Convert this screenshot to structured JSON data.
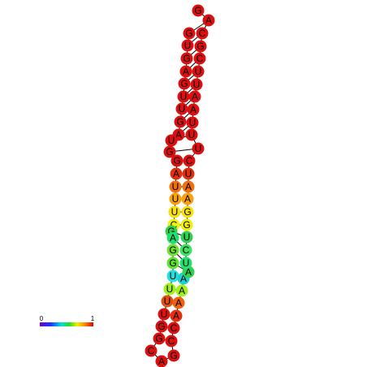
{
  "nodes": [
    {
      "label": "G",
      "color": "#dd1010"
    },
    {
      "label": "U",
      "color": "#dd1010"
    },
    {
      "label": "G",
      "color": "#dd1010"
    },
    {
      "label": "A",
      "color": "#dd1010"
    },
    {
      "label": "G",
      "color": "#dd1010"
    },
    {
      "label": "U",
      "color": "#dd1010"
    },
    {
      "label": "U",
      "color": "#dd1010"
    },
    {
      "label": "G",
      "color": "#dd1010"
    },
    {
      "label": "A",
      "color": "#dd1010"
    },
    {
      "label": "U",
      "color": "#dd1010"
    },
    {
      "label": "G",
      "color": "#dd1010"
    },
    {
      "label": "G",
      "color": "#dd1010"
    },
    {
      "label": "A",
      "color": "#e03010"
    },
    {
      "label": "U",
      "color": "#f07010"
    },
    {
      "label": "U",
      "color": "#f8a010"
    },
    {
      "label": "U",
      "color": "#f8e010"
    },
    {
      "label": "C",
      "color": "#f0f010"
    },
    {
      "label": "G",
      "color": "#30d050"
    },
    {
      "label": "A",
      "color": "#20e070"
    },
    {
      "label": "G",
      "color": "#70e030"
    },
    {
      "label": "G",
      "color": "#60e030"
    },
    {
      "label": "U",
      "color": "#20e0e0"
    },
    {
      "label": "U",
      "color": "#a0f020"
    },
    {
      "label": "U",
      "color": "#e05010"
    },
    {
      "label": "U",
      "color": "#dd1010"
    },
    {
      "label": "G",
      "color": "#dd1010"
    },
    {
      "label": "G",
      "color": "#dd1010"
    },
    {
      "label": "C",
      "color": "#dd1010"
    },
    {
      "label": "A",
      "color": "#dd1010"
    },
    {
      "label": "G",
      "color": "#dd1010"
    },
    {
      "label": "C",
      "color": "#dd1010"
    },
    {
      "label": "C",
      "color": "#dd1010"
    },
    {
      "label": "A",
      "color": "#e03010"
    },
    {
      "label": "A",
      "color": "#f06010"
    },
    {
      "label": "A",
      "color": "#a0f020"
    },
    {
      "label": "A",
      "color": "#20d0d0"
    },
    {
      "label": "A",
      "color": "#30d050"
    },
    {
      "label": "U",
      "color": "#20e070"
    },
    {
      "label": "C",
      "color": "#40e060"
    },
    {
      "label": "U",
      "color": "#30d050"
    },
    {
      "label": "G",
      "color": "#f0f010"
    },
    {
      "label": "G",
      "color": "#f8e010"
    },
    {
      "label": "A",
      "color": "#f8a010"
    },
    {
      "label": "A",
      "color": "#f07010"
    },
    {
      "label": "U",
      "color": "#e03010"
    },
    {
      "label": "C",
      "color": "#dd1010"
    },
    {
      "label": "U",
      "color": "#dd1010"
    },
    {
      "label": "U",
      "color": "#dd1010"
    },
    {
      "label": "U",
      "color": "#dd1010"
    },
    {
      "label": "A",
      "color": "#dd1010"
    },
    {
      "label": "A",
      "color": "#dd1010"
    },
    {
      "label": "U",
      "color": "#dd1010"
    },
    {
      "label": "U",
      "color": "#dd1010"
    },
    {
      "label": "C",
      "color": "#dd1010"
    },
    {
      "label": "G",
      "color": "#dd1010"
    },
    {
      "label": "C",
      "color": "#dd1010"
    },
    {
      "label": "A",
      "color": "#dd1010"
    },
    {
      "label": "G",
      "color": "#dd1010"
    }
  ],
  "colorbar": {
    "min": "0",
    "max": "1"
  }
}
